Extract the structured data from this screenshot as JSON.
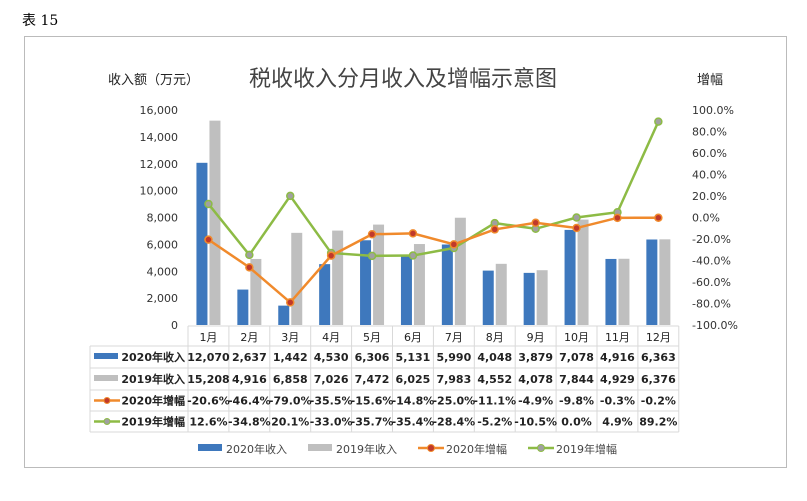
{
  "caption": "表 15",
  "chart_data": {
    "type": "bar+line",
    "title": "税收收入分月收入及增幅示意图",
    "ylabel": "收入额（万元）",
    "y2label": "增幅",
    "ylim": [
      0,
      16000
    ],
    "yticks": [
      "0",
      "2,000",
      "4,000",
      "6,000",
      "8,000",
      "10,000",
      "12,000",
      "14,000",
      "16,000"
    ],
    "y2lim": [
      -100,
      100
    ],
    "y2ticks": [
      "-100.0%",
      "-80.0%",
      "-60.0%",
      "-40.0%",
      "-20.0%",
      "0.0%",
      "20.0%",
      "40.0%",
      "60.0%",
      "80.0%",
      "100.0%"
    ],
    "categories": [
      "1月",
      "2月",
      "3月",
      "4月",
      "5月",
      "6月",
      "7月",
      "8月",
      "9月",
      "10月",
      "11月",
      "12月"
    ],
    "legend_position": "bottom",
    "series": [
      {
        "name": "2020年收入",
        "kind": "bar",
        "axis": "left",
        "color": "#3e78bd",
        "values": [
          12070,
          2637,
          1442,
          4530,
          6306,
          5131,
          5990,
          4048,
          3879,
          7078,
          4916,
          6363
        ],
        "labels": [
          "12,070",
          "2,637",
          "1,442",
          "4,530",
          "6,306",
          "5,131",
          "5,990",
          "4,048",
          "3,879",
          "7,078",
          "4,916",
          "6,363"
        ]
      },
      {
        "name": "2019年收入",
        "kind": "bar",
        "axis": "right",
        "color": "#bfbfbf",
        "values": [
          15208,
          4916,
          6858,
          7026,
          7472,
          6025,
          7983,
          4552,
          4078,
          7844,
          4929,
          6376
        ],
        "labels": [
          "15,208",
          "4,916",
          "6,858",
          "7,026",
          "7,472",
          "6,025",
          "7,983",
          "4,552",
          "4,078",
          "7,844",
          "4,929",
          "6,376"
        ]
      },
      {
        "name": "2020年增幅",
        "kind": "line",
        "color": "#f08a2c",
        "marker": "#c0392b",
        "values": [
          -20.6,
          -46.4,
          -79.0,
          -35.5,
          -15.6,
          -14.8,
          -25.0,
          -11.1,
          -4.9,
          -9.8,
          -0.3,
          -0.2
        ],
        "labels": [
          "-20.6%",
          "-46.4%",
          "-79.0%",
          "-35.5%",
          "-15.6%",
          "-14.8%",
          "-25.0%",
          "-11.1%",
          "-4.9%",
          "-9.8%",
          "-0.3%",
          "-0.2%"
        ]
      },
      {
        "name": "2019年增幅",
        "kind": "line",
        "color": "#8dbb45",
        "marker": "#a0a0a0",
        "values": [
          12.6,
          -34.8,
          20.1,
          -33.0,
          -35.7,
          -35.4,
          -28.4,
          -5.2,
          -10.5,
          0.0,
          4.9,
          89.2
        ],
        "labels": [
          "12.6%",
          "-34.8%",
          "20.1%",
          "-33.0%",
          "-35.7%",
          "-35.4%",
          "-28.4%",
          "-5.2%",
          "-10.5%",
          "0.0%",
          "4.9%",
          "89.2%"
        ]
      }
    ]
  }
}
